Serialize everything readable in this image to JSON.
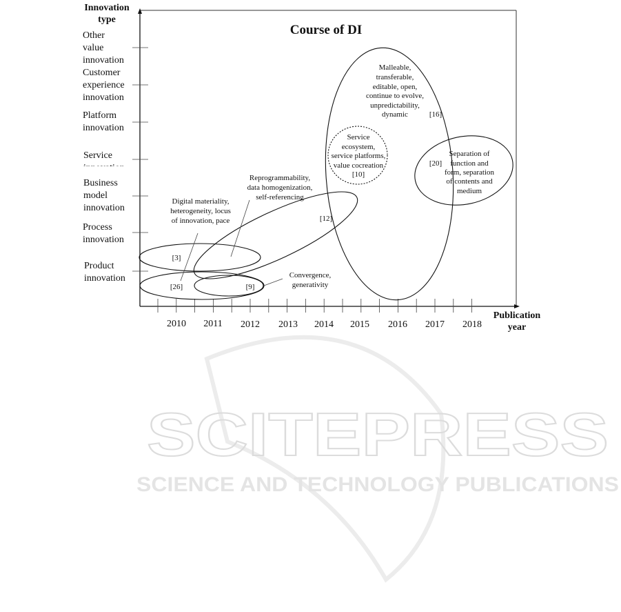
{
  "title": "Course of DI",
  "y_axis": {
    "title": [
      "Innovation",
      "type"
    ],
    "categories": [
      [
        "Product",
        "innovation"
      ],
      [
        "Process",
        "innovation"
      ],
      [
        "Business",
        "model",
        "innovation"
      ],
      [
        "Service",
        "innovation"
      ],
      [
        "Platform",
        "innovation"
      ],
      [
        "Customer",
        "experience",
        "innovation"
      ],
      [
        "Other",
        "value",
        "innovation"
      ]
    ]
  },
  "x_axis": {
    "title": [
      "Publication",
      "year"
    ],
    "ticks": [
      "2010",
      "2011",
      "2012",
      "2013",
      "2014",
      "2015",
      "2016",
      "2017",
      "2018"
    ]
  },
  "clusters": [
    {
      "ref": "[3]"
    },
    {
      "ref": "[26]",
      "label": [
        "Digital materiality,",
        "heterogeneity, locus",
        "of innovation, pace"
      ]
    },
    {
      "ref": "[9]",
      "label": [
        "Convergence,",
        "generativity"
      ]
    },
    {
      "ref": "[12]",
      "label": [
        "Reprogrammability,",
        "data homogenization,",
        "self-referencing"
      ]
    },
    {
      "ref": "[16]",
      "label": [
        "Malleable,",
        "transferable,",
        "editable, open,",
        "continue to evolve,",
        "unpredictability,",
        "dynamic"
      ]
    },
    {
      "ref": "[10]",
      "label": [
        "Service",
        "ecosystem,",
        "service platforms,",
        "value cocreation"
      ],
      "style": "dashed"
    },
    {
      "ref": "[20]",
      "label": [
        "Separation of",
        "function and",
        "form, separation",
        "of contents and",
        "medium"
      ]
    }
  ],
  "watermark": {
    "main": "SCITEPRESS",
    "sub": "SCIENCE AND TECHNOLOGY PUBLICATIONS"
  }
}
